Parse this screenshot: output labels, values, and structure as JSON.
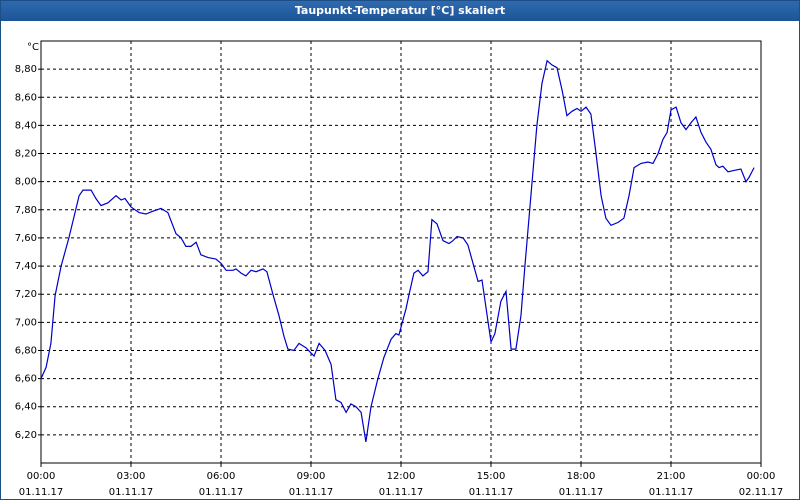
{
  "chart_data": {
    "type": "line",
    "title": "Taupunkt-Temperatur [°C] skaliert",
    "y_label": "°C",
    "xlim": [
      0,
      24
    ],
    "ylim": [
      6.0,
      9.0
    ],
    "xticks": [
      {
        "value": 0,
        "label": "00:00",
        "date": "01.11.17"
      },
      {
        "value": 3,
        "label": "03:00",
        "date": "01.11.17"
      },
      {
        "value": 6,
        "label": "06:00",
        "date": "01.11.17"
      },
      {
        "value": 9,
        "label": "09:00",
        "date": "01.11.17"
      },
      {
        "value": 12,
        "label": "12:00",
        "date": "01.11.17"
      },
      {
        "value": 15,
        "label": "15:00",
        "date": "01.11.17"
      },
      {
        "value": 18,
        "label": "18:00",
        "date": "01.11.17"
      },
      {
        "value": 21,
        "label": "21:00",
        "date": "01.11.17"
      },
      {
        "value": 24,
        "label": "00:00",
        "date": "02.11.17"
      }
    ],
    "yticks": [
      {
        "value": 6.2,
        "label": "6,20"
      },
      {
        "value": 6.4,
        "label": "6,40"
      },
      {
        "value": 6.6,
        "label": "6,60"
      },
      {
        "value": 6.8,
        "label": "6,80"
      },
      {
        "value": 7.0,
        "label": "7,00"
      },
      {
        "value": 7.2,
        "label": "7,20"
      },
      {
        "value": 7.4,
        "label": "7,40"
      },
      {
        "value": 7.6,
        "label": "7,60"
      },
      {
        "value": 7.8,
        "label": "7,80"
      },
      {
        "value": 8.0,
        "label": "8,00"
      },
      {
        "value": 8.2,
        "label": "8,20"
      },
      {
        "value": 8.4,
        "label": "8,40"
      },
      {
        "value": 8.6,
        "label": "8,60"
      },
      {
        "value": 8.8,
        "label": "8,80"
      }
    ],
    "grid": true,
    "x": [
      0,
      0.17,
      0.33,
      0.47,
      0.67,
      0.93,
      1.27,
      1.4,
      1.67,
      1.83,
      2,
      2.23,
      2.5,
      2.67,
      2.8,
      3,
      3.27,
      3.5,
      3.73,
      4,
      4.23,
      4.5,
      4.67,
      4.83,
      5,
      5.17,
      5.33,
      5.57,
      5.83,
      6,
      6.17,
      6.4,
      6.5,
      6.67,
      6.83,
      7,
      7.17,
      7.4,
      7.53,
      7.73,
      7.93,
      8.1,
      8.23,
      8.43,
      8.6,
      8.83,
      9.1,
      9.27,
      9.47,
      9.67,
      9.83,
      10,
      10.17,
      10.33,
      10.5,
      10.67,
      10.83,
      11,
      11.23,
      11.43,
      11.67,
      11.83,
      11.93,
      12.17,
      12.27,
      12.43,
      12.57,
      12.73,
      12.9,
      13.03,
      13.2,
      13.4,
      13.6,
      13.73,
      13.87,
      14.07,
      14.23,
      14.4,
      14.57,
      14.7,
      14.87,
      15,
      15.13,
      15.33,
      15.5,
      15.67,
      15.83,
      16,
      16.13,
      16.33,
      16.53,
      16.7,
      16.87,
      17.03,
      17.2,
      17.37,
      17.53,
      17.7,
      17.87,
      18,
      18.17,
      18.33,
      18.5,
      18.67,
      18.83,
      19,
      19.23,
      19.43,
      19.6,
      19.77,
      20,
      20.23,
      20.4,
      20.57,
      20.73,
      20.87,
      21,
      21.17,
      21.33,
      21.5,
      21.67,
      21.83,
      22,
      22.17,
      22.33,
      22.5,
      22.6,
      22.73,
      22.9,
      23.1,
      23.33,
      23.5,
      23.6,
      23.77
    ],
    "series": [
      {
        "name": "Taupunkt",
        "color": "#0000c8",
        "values": [
          6.6,
          6.68,
          6.85,
          7.19,
          7.4,
          7.6,
          7.9,
          7.94,
          7.94,
          7.88,
          7.83,
          7.85,
          7.9,
          7.87,
          7.88,
          7.82,
          7.78,
          7.77,
          7.79,
          7.81,
          7.78,
          7.63,
          7.6,
          7.54,
          7.54,
          7.57,
          7.48,
          7.46,
          7.45,
          7.42,
          7.37,
          7.37,
          7.38,
          7.35,
          7.33,
          7.37,
          7.36,
          7.38,
          7.36,
          7.2,
          7.05,
          6.9,
          6.81,
          6.8,
          6.85,
          6.82,
          6.76,
          6.85,
          6.8,
          6.7,
          6.45,
          6.43,
          6.36,
          6.42,
          6.4,
          6.36,
          6.15,
          6.4,
          6.6,
          6.75,
          6.88,
          6.92,
          6.91,
          7.1,
          7.2,
          7.35,
          7.37,
          7.33,
          7.36,
          7.73,
          7.7,
          7.58,
          7.56,
          7.58,
          7.61,
          7.6,
          7.55,
          7.42,
          7.29,
          7.3,
          7.05,
          6.86,
          6.92,
          7.15,
          7.22,
          6.81,
          6.81,
          7.05,
          7.4,
          7.9,
          8.4,
          8.7,
          8.86,
          8.83,
          8.81,
          8.65,
          8.47,
          8.5,
          8.52,
          8.5,
          8.53,
          8.48,
          8.2,
          7.9,
          7.74,
          7.69,
          7.71,
          7.74,
          7.9,
          8.1,
          8.13,
          8.14,
          8.13,
          8.2,
          8.3,
          8.35,
          8.51,
          8.53,
          8.42,
          8.37,
          8.42,
          8.46,
          8.35,
          8.28,
          8.23,
          8.12,
          8.1,
          8.11,
          8.07,
          8.08,
          8.09,
          8.0,
          8.03,
          8.1
        ]
      }
    ]
  }
}
